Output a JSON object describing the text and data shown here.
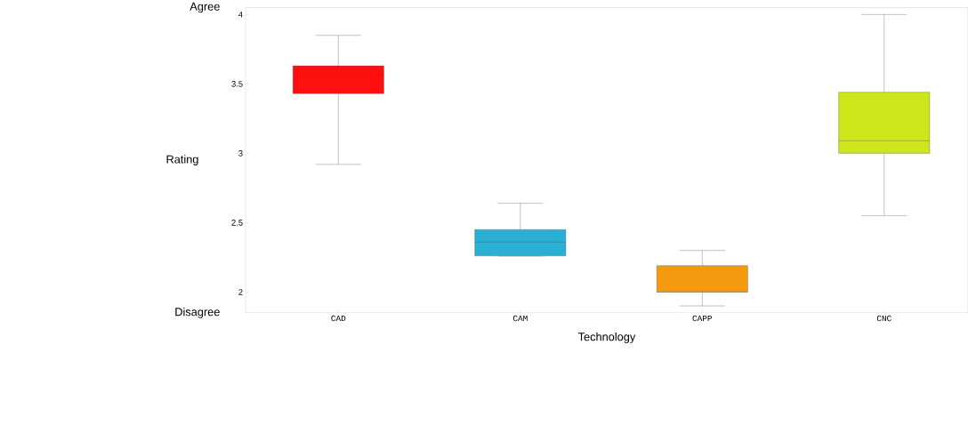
{
  "chart_data": {
    "type": "box",
    "xlabel": "Technology",
    "ylabel": "Rating",
    "categories": [
      "CAD",
      "CAM",
      "CAPP",
      "CNC"
    ],
    "boxes": [
      {
        "low": 2.92,
        "q1": 3.43,
        "median": 3.57,
        "q3": 3.63,
        "high": 3.85
      },
      {
        "low": 2.26,
        "q1": 2.26,
        "median": 2.36,
        "q3": 2.45,
        "high": 2.64
      },
      {
        "low": 1.9,
        "q1": 2.0,
        "median": 2.0,
        "q3": 2.19,
        "high": 2.3
      },
      {
        "low": 2.55,
        "q1": 3.0,
        "median": 3.09,
        "q3": 3.44,
        "high": 4.0
      }
    ],
    "colors": [
      "#ff1010",
      "#29b0d4",
      "#f59a0f",
      "#cce61a"
    ],
    "ylim": [
      1.85,
      4.05
    ],
    "yticks": [
      2,
      2.5,
      3,
      3.5,
      4
    ],
    "annotations": [
      "Agree",
      "Disagree"
    ]
  }
}
